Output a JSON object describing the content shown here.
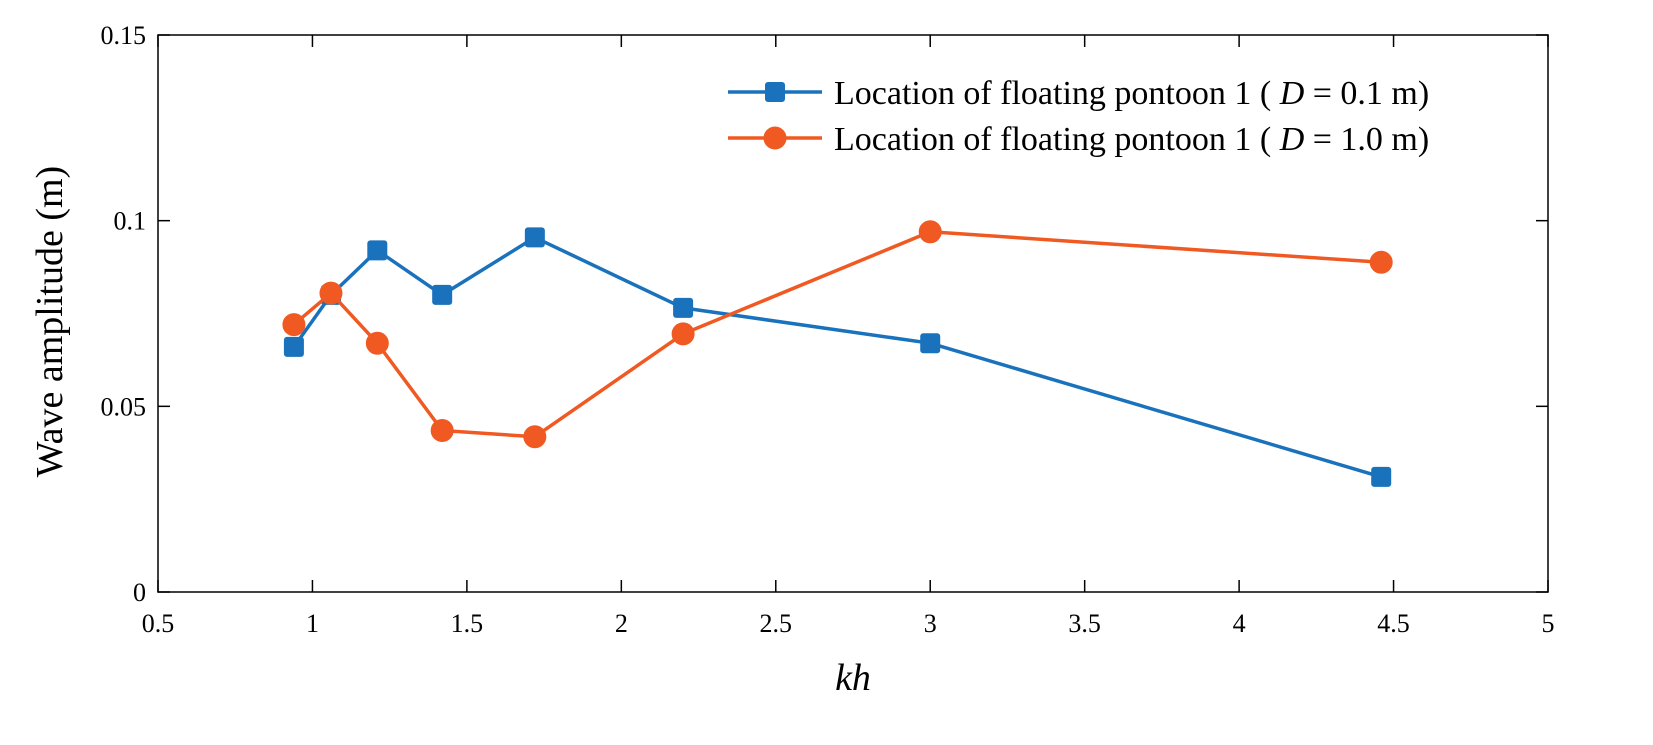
{
  "chart_data": {
    "type": "line",
    "title": "",
    "xlabel": "kh",
    "ylabel": "Wave amplitude (m)",
    "xlim": [
      0.5,
      5
    ],
    "ylim": [
      0,
      0.15
    ],
    "xticks": [
      0.5,
      1,
      1.5,
      2,
      2.5,
      3,
      3.5,
      4,
      4.5,
      5
    ],
    "xtick_labels": [
      "0.5",
      "1",
      "1.5",
      "2",
      "2.5",
      "3",
      "3.5",
      "4",
      "4.5",
      "5"
    ],
    "yticks": [
      0,
      0.05,
      0.1,
      0.15
    ],
    "ytick_labels": [
      "0",
      "0.05",
      "0.1",
      "0.15"
    ],
    "grid": false,
    "legend_position": "top-right",
    "series": [
      {
        "name_prefix": "Location of floating pontoon 1 ( ",
        "name_italic": "D",
        "name_suffix": " = 0.1 m)",
        "color": "#1a72bc",
        "marker": "square",
        "x": [
          0.94,
          1.06,
          1.21,
          1.42,
          1.72,
          2.2,
          3.0,
          4.46
        ],
        "y": [
          0.066,
          0.08,
          0.092,
          0.08,
          0.0955,
          0.0765,
          0.067,
          0.031
        ]
      },
      {
        "name_prefix": "Location of floating pontoon 1 ( ",
        "name_italic": "D",
        "name_suffix": " = 1.0 m)",
        "color": "#f05a22",
        "marker": "circle",
        "x": [
          0.94,
          1.06,
          1.21,
          1.42,
          1.72,
          2.2,
          3.0,
          4.46
        ],
        "y": [
          0.072,
          0.0805,
          0.067,
          0.0435,
          0.0418,
          0.0695,
          0.097,
          0.0888
        ]
      }
    ]
  }
}
